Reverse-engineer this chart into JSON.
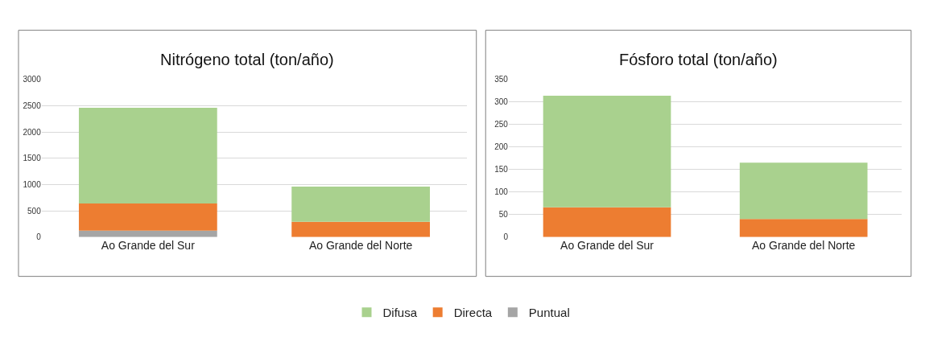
{
  "chart_data": [
    {
      "type": "bar",
      "title": "Nitrógeno total (ton/año)",
      "categories": [
        "Ao Grande del Sur",
        "Ao Grande del Norte"
      ],
      "stacked": true,
      "series": [
        {
          "name": "Puntual",
          "color": "#a5a5a5",
          "values": [
            120,
            0
          ]
        },
        {
          "name": "Directa",
          "color": "#ed7d31",
          "values": [
            520,
            290
          ]
        },
        {
          "name": "Difusa",
          "color": "#a9d18e",
          "values": [
            1820,
            670
          ]
        }
      ],
      "ylim": [
        0,
        3000
      ],
      "yticks": [
        0,
        500,
        1000,
        1500,
        2000,
        2500,
        3000
      ],
      "grid": "y",
      "legend": "bottom"
    },
    {
      "type": "bar",
      "title": "Fósforo total (ton/año)",
      "categories": [
        "Ao Grande del Sur",
        "Ao Grande del Norte"
      ],
      "stacked": true,
      "series": [
        {
          "name": "Puntual",
          "color": "#a5a5a5",
          "values": [
            0,
            0
          ]
        },
        {
          "name": "Directa",
          "color": "#ed7d31",
          "values": [
            66,
            40
          ]
        },
        {
          "name": "Difusa",
          "color": "#a9d18e",
          "values": [
            248,
            125
          ]
        }
      ],
      "ylim": [
        0,
        350
      ],
      "yticks": [
        0,
        50,
        100,
        150,
        200,
        250,
        300,
        350
      ],
      "grid": "y",
      "legend": "bottom"
    }
  ]
}
